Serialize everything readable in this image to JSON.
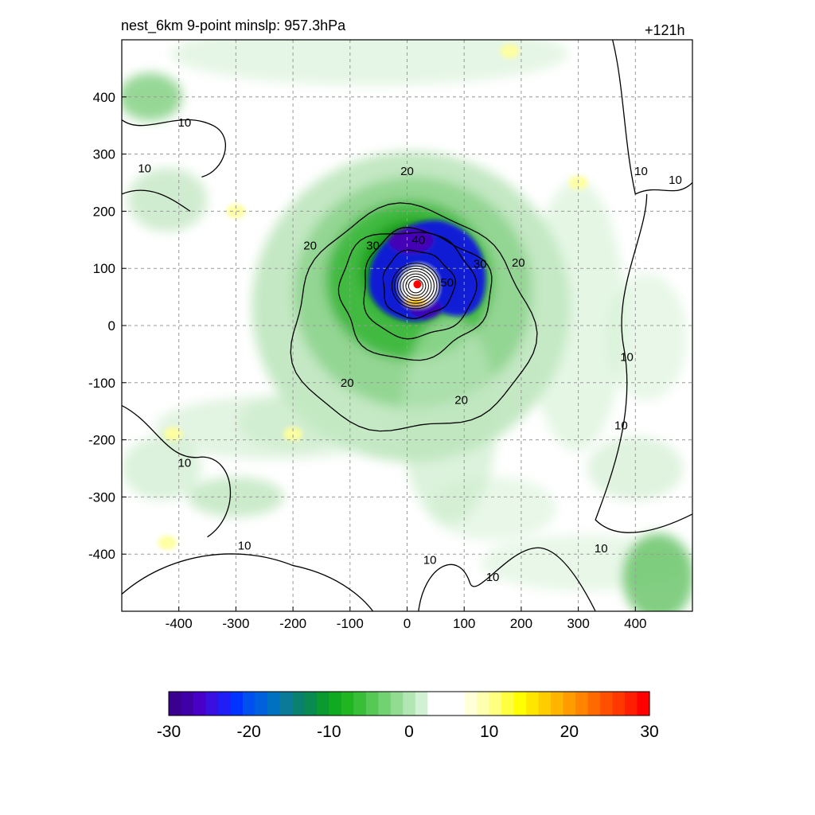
{
  "title_left": "nest_6km  9-point minslp: 957.3hPa",
  "title_right": "+121h",
  "chart_data": {
    "type": "heatmap",
    "xlim": [
      -500,
      500
    ],
    "ylim": [
      -500,
      500
    ],
    "x_ticks": [
      -400,
      -300,
      -200,
      -100,
      0,
      100,
      200,
      300,
      400
    ],
    "y_ticks": [
      400,
      300,
      200,
      100,
      0,
      -100,
      -200,
      -300,
      -400
    ],
    "grid": true,
    "center": {
      "x": 18,
      "y": 72
    },
    "contour_levels": [
      10,
      20,
      30,
      40,
      50
    ],
    "contour_labels": [
      {
        "text": "10",
        "x": -390,
        "y": 355
      },
      {
        "text": "10",
        "x": -460,
        "y": 275
      },
      {
        "text": "10",
        "x": -390,
        "y": -240
      },
      {
        "text": "10",
        "x": -285,
        "y": -385
      },
      {
        "text": "10",
        "x": 40,
        "y": -410
      },
      {
        "text": "10",
        "x": 150,
        "y": -440
      },
      {
        "text": "10",
        "x": 340,
        "y": -390
      },
      {
        "text": "10",
        "x": 385,
        "y": -55
      },
      {
        "text": "10",
        "x": 375,
        "y": -175
      },
      {
        "text": "10",
        "x": 410,
        "y": 270
      },
      {
        "text": "10",
        "x": 470,
        "y": 255
      },
      {
        "text": "20",
        "x": 0,
        "y": 270
      },
      {
        "text": "20",
        "x": -170,
        "y": 140
      },
      {
        "text": "20",
        "x": 195,
        "y": 110
      },
      {
        "text": "20",
        "x": -105,
        "y": -100
      },
      {
        "text": "20",
        "x": 95,
        "y": -130
      },
      {
        "text": "30",
        "x": -60,
        "y": 140
      },
      {
        "text": "30",
        "x": 128,
        "y": 108
      },
      {
        "text": "40",
        "x": 20,
        "y": 150
      },
      {
        "text": "50",
        "x": 70,
        "y": 75
      }
    ],
    "colorbar": {
      "min": -30,
      "max": 30,
      "tick_labels": [
        "-30",
        "-20",
        "-10",
        "0",
        "10",
        "20",
        "30"
      ],
      "colors": [
        "#3a0090",
        "#3f00a8",
        "#4800c8",
        "#3a10e0",
        "#1e1ef5",
        "#0033ff",
        "#0050f0",
        "#0060dd",
        "#0070c0",
        "#0a7a98",
        "#0a8070",
        "#0a8a50",
        "#0a9a30",
        "#10aa20",
        "#22b522",
        "#38be38",
        "#55c855",
        "#72d272",
        "#92dc92",
        "#b2e6b2",
        "#d2f0d2",
        "#ffffff",
        "#ffffff",
        "#ffffff",
        "#ffffd8",
        "#ffffb0",
        "#ffff80",
        "#ffff40",
        "#ffff00",
        "#ffe600",
        "#ffcc00",
        "#ffb400",
        "#ff9c00",
        "#ff8400",
        "#ff6a00",
        "#ff5000",
        "#ff3800",
        "#ff1e00",
        "#ff0000"
      ]
    }
  }
}
